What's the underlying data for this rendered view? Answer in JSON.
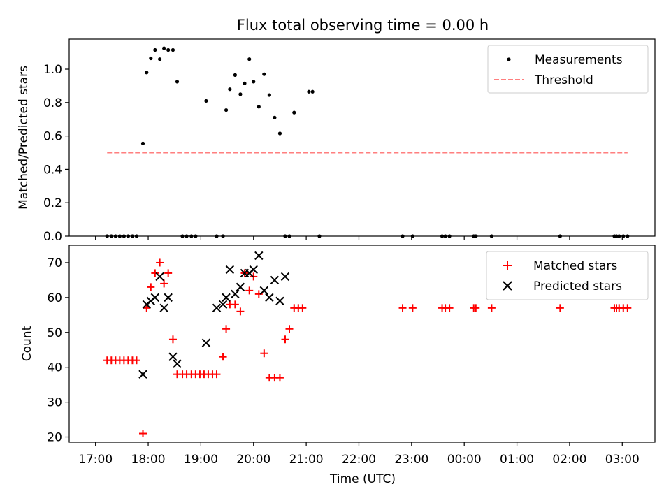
{
  "chart_data": {
    "title": "Flux total observing time = 0.00 h",
    "x_axis": {
      "label": "Time (UTC)",
      "ticks": [
        "17:00",
        "18:00",
        "19:00",
        "20:00",
        "21:00",
        "22:00",
        "23:00",
        "00:00",
        "01:00",
        "02:00",
        "03:00"
      ],
      "tick_hours": [
        0,
        1,
        2,
        3,
        4,
        5,
        6,
        7,
        8,
        9,
        10
      ],
      "range_hours_from_17": [
        -0.5,
        10.62
      ]
    },
    "panels": [
      {
        "type": "scatter",
        "ylabel": "Matched/Predicted stars",
        "ylim": [
          0,
          1.18
        ],
        "yticks": [
          "0.0",
          "0.2",
          "0.4",
          "0.6",
          "0.8",
          "1.0"
        ],
        "ytick_values": [
          0,
          0.2,
          0.4,
          0.6,
          0.8,
          1.0
        ],
        "legend": {
          "placement": "top-right",
          "entries": [
            "Measurements",
            "Threshold"
          ]
        },
        "series": [
          {
            "name": "Measurements",
            "color": "#000000",
            "marker": "dot",
            "x_hours": [
              0.22,
              0.3,
              0.38,
              0.46,
              0.54,
              0.62,
              0.7,
              0.78,
              0.9,
              0.97,
              1.05,
              1.13,
              1.22,
              1.3,
              1.38,
              1.47,
              1.55,
              1.65,
              1.73,
              1.82,
              1.9,
              2.1,
              2.3,
              2.42,
              2.48,
              2.55,
              2.65,
              2.75,
              2.83,
              2.92,
              3.0,
              3.1,
              3.2,
              3.3,
              3.4,
              3.5,
              3.6,
              3.68,
              3.77,
              4.05,
              4.12
            ],
            "y": [
              0.0,
              0.0,
              0.0,
              0.0,
              0.0,
              0.0,
              0.0,
              0.0,
              0.555,
              0.98,
              1.065,
              1.115,
              1.06,
              1.125,
              1.115,
              1.115,
              0.925,
              0.0,
              0.0,
              0.0,
              0.0,
              0.81,
              0.0,
              0.0,
              0.755,
              0.88,
              0.965,
              0.85,
              0.915,
              1.06,
              0.925,
              0.775,
              0.97,
              0.845,
              0.71,
              0.615,
              0.0,
              0.0,
              0.74,
              0.865,
              0.865
            ]
          },
          {
            "name": "Measurements",
            "color": "#000000",
            "marker": "dot",
            "x_hours": [
              4.25,
              5.83,
              6.02,
              6.58,
              6.64,
              6.72,
              7.18,
              7.22,
              7.52,
              8.82,
              9.85,
              9.89,
              9.94,
              10.02,
              10.1
            ],
            "y": [
              0,
              0,
              0,
              0,
              0,
              0,
              0,
              0,
              0,
              0,
              0,
              0,
              0,
              0,
              0
            ]
          },
          {
            "name": "Threshold",
            "color": "#ff7f7f",
            "style": "dashed",
            "x_hours": [
              0.22,
              10.1
            ],
            "y": [
              0.5,
              0.5
            ]
          }
        ]
      },
      {
        "type": "scatter",
        "ylabel": "Count",
        "ylim": [
          18.5,
          75
        ],
        "yticks": [
          "20",
          "30",
          "40",
          "50",
          "60",
          "70"
        ],
        "ytick_values": [
          20,
          30,
          40,
          50,
          60,
          70
        ],
        "legend": {
          "placement": "top-right",
          "entries": [
            "Matched stars",
            "Predicted stars"
          ]
        },
        "series": [
          {
            "name": "Matched stars",
            "color": "#ff0000",
            "marker": "plus",
            "x_hours": [
              0.22,
              0.3,
              0.38,
              0.46,
              0.54,
              0.62,
              0.7,
              0.78,
              0.9,
              0.97,
              1.05,
              1.13,
              1.22,
              1.3,
              1.38,
              1.47,
              1.55,
              1.65,
              1.73,
              1.82,
              1.9,
              1.98,
              2.06,
              2.14,
              2.22,
              2.3,
              2.42,
              2.48,
              2.55,
              2.65,
              2.75,
              2.83,
              2.92,
              3.0,
              3.1,
              3.2,
              3.3,
              3.4,
              3.5,
              3.6,
              3.68,
              3.77,
              3.85,
              3.93,
              5.83,
              6.02,
              6.58,
              6.64,
              6.72,
              7.18,
              7.22,
              7.52,
              8.82,
              9.85,
              9.89,
              9.94,
              10.02,
              10.1
            ],
            "y": [
              42,
              42,
              42,
              42,
              42,
              42,
              42,
              42,
              21,
              57,
              63,
              67,
              70,
              64,
              67,
              48,
              38,
              38,
              38,
              38,
              38,
              38,
              38,
              38,
              38,
              38,
              43,
              51,
              58,
              58,
              56,
              67,
              62,
              66,
              61,
              44,
              37,
              37,
              37,
              48,
              51,
              57,
              57,
              57,
              57,
              57,
              57,
              57,
              57,
              57,
              57,
              57,
              57,
              57,
              57,
              57,
              57,
              57
            ]
          },
          {
            "name": "Predicted stars",
            "color": "#000000",
            "marker": "x",
            "x_hours": [
              0.9,
              0.97,
              1.05,
              1.13,
              1.22,
              1.3,
              1.38,
              1.47,
              1.55,
              2.1,
              2.3,
              2.42,
              2.48,
              2.55,
              2.65,
              2.75,
              2.83,
              2.92,
              3.0,
              3.1,
              3.2,
              3.3,
              3.4,
              3.5,
              3.6
            ],
            "y": [
              38,
              58,
              59,
              60,
              66,
              57,
              60,
              43,
              41,
              47,
              57,
              58,
              60,
              68,
              61,
              63,
              67,
              67,
              68,
              72,
              62,
              60,
              65,
              59,
              66
            ]
          }
        ]
      }
    ]
  }
}
